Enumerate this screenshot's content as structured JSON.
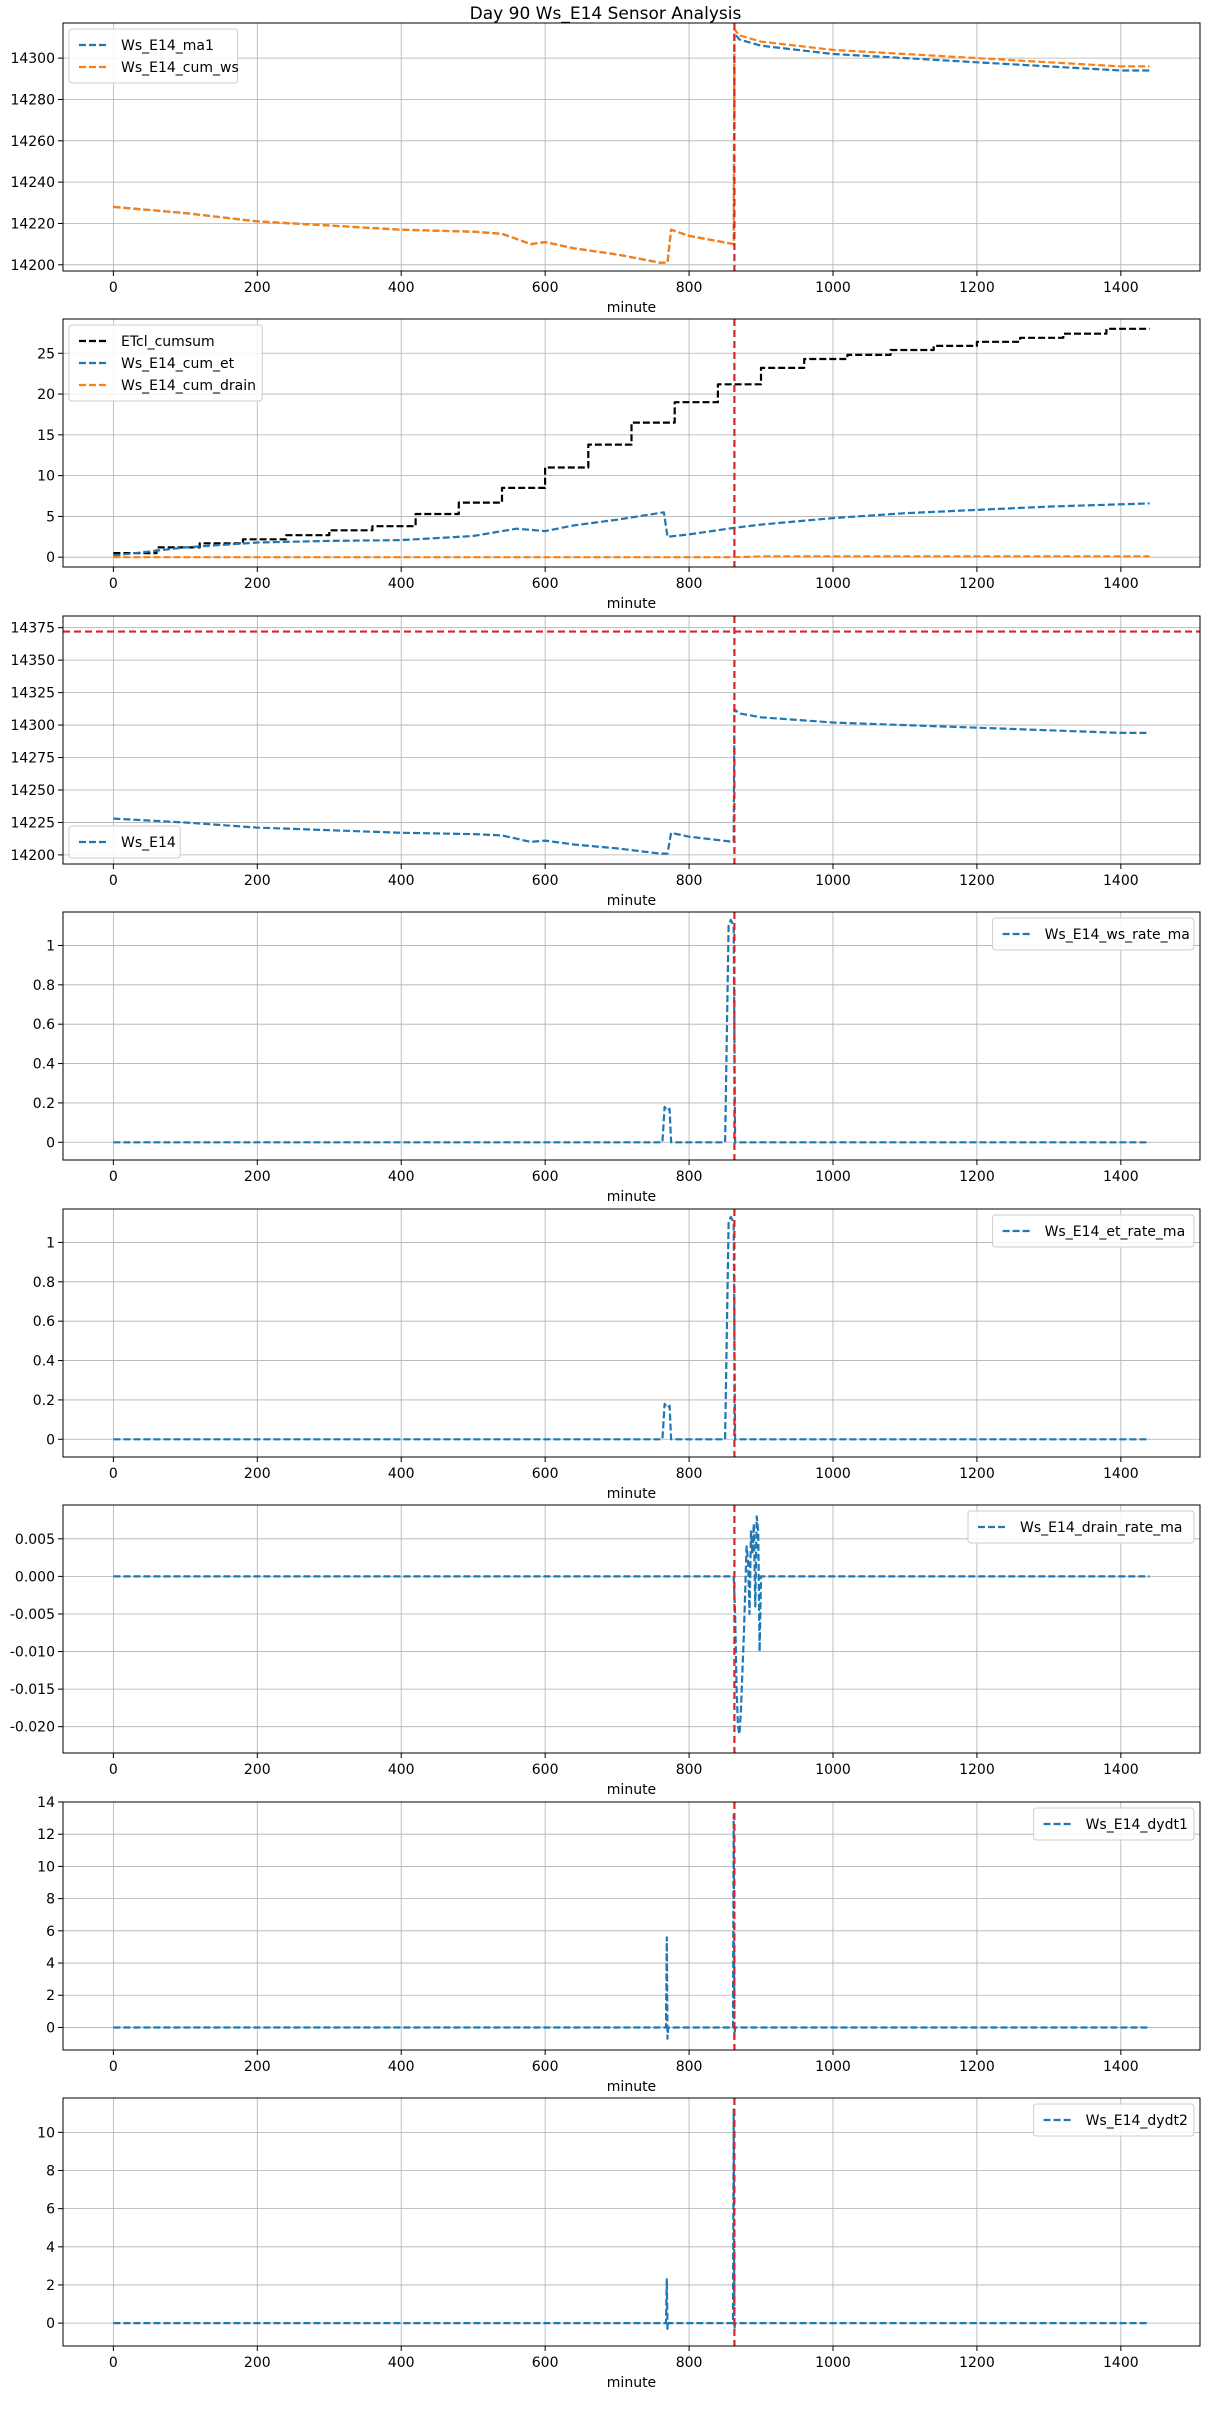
{
  "figure": {
    "title": "Day 90 Ws_E14 Sensor Analysis"
  },
  "colors": {
    "blue": "#1f77b4",
    "orange": "#ff7f0e",
    "black": "#000000",
    "red": "#d62728",
    "grid": "#b0b0b0"
  },
  "chart_data": [
    {
      "type": "line",
      "xlabel": "minute",
      "xlim": [
        -70,
        1510
      ],
      "ylim": [
        14197,
        14317
      ],
      "xticks": [
        0,
        200,
        400,
        600,
        800,
        1000,
        1200,
        1400
      ],
      "yticks": [
        14200,
        14220,
        14240,
        14260,
        14280,
        14300
      ],
      "grid": true,
      "legend_position": "top-left",
      "vlines": [
        863
      ],
      "hlines": [],
      "series": [
        {
          "name": "Ws_E14_ma1",
          "color": "blue",
          "style": "dashed",
          "x": [
            0,
            100,
            200,
            300,
            400,
            500,
            540,
            580,
            600,
            640,
            700,
            760,
            770,
            775,
            800,
            862,
            863,
            870,
            900,
            1000,
            1100,
            1200,
            1300,
            1400,
            1440
          ],
          "y": [
            14228,
            14225,
            14221,
            14219,
            14217,
            14216,
            14215,
            14210,
            14211,
            14208,
            14205,
            14201,
            14201,
            14217,
            14214,
            14210,
            14312,
            14309,
            14306,
            14302,
            14300,
            14298,
            14296,
            14294,
            14294
          ]
        },
        {
          "name": "Ws_E14_cum_ws",
          "color": "orange",
          "style": "dashed",
          "x": [
            0,
            100,
            200,
            300,
            400,
            500,
            540,
            580,
            600,
            640,
            700,
            760,
            770,
            775,
            800,
            862,
            863,
            870,
            900,
            1000,
            1100,
            1200,
            1300,
            1400,
            1440
          ],
          "y": [
            14228,
            14225,
            14221,
            14219,
            14217,
            14216,
            14215,
            14210,
            14211,
            14208,
            14205,
            14201,
            14201,
            14217,
            14214,
            14210,
            14314,
            14311,
            14308,
            14304,
            14302,
            14300,
            14298,
            14296,
            14296
          ]
        }
      ]
    },
    {
      "type": "line",
      "xlabel": "minute",
      "xlim": [
        -70,
        1510
      ],
      "ylim": [
        -1.2,
        29.2
      ],
      "xticks": [
        0,
        200,
        400,
        600,
        800,
        1000,
        1200,
        1400
      ],
      "yticks": [
        0,
        5,
        10,
        15,
        20,
        25
      ],
      "grid": true,
      "legend_position": "top-left",
      "vlines": [
        863
      ],
      "hlines": [],
      "series": [
        {
          "name": "ETcl_cumsum",
          "color": "black",
          "style": "dashed",
          "step": true,
          "x": [
            0,
            60,
            120,
            180,
            240,
            300,
            360,
            420,
            480,
            540,
            600,
            660,
            720,
            780,
            840,
            900,
            960,
            1020,
            1080,
            1140,
            1200,
            1260,
            1320,
            1380,
            1440
          ],
          "y": [
            0.5,
            1.2,
            1.7,
            2.2,
            2.7,
            3.3,
            3.8,
            5.3,
            6.7,
            8.5,
            11.0,
            13.8,
            16.5,
            19.0,
            21.2,
            23.2,
            24.3,
            24.8,
            25.4,
            25.9,
            26.4,
            26.9,
            27.4,
            28.0,
            28.0
          ]
        },
        {
          "name": "Ws_E14_cum_et",
          "color": "blue",
          "style": "dashed",
          "x": [
            0,
            100,
            200,
            300,
            400,
            500,
            560,
            600,
            640,
            700,
            765,
            770,
            800,
            863,
            900,
            1000,
            1100,
            1200,
            1300,
            1440
          ],
          "y": [
            0.2,
            1.2,
            1.8,
            2.0,
            2.1,
            2.6,
            3.5,
            3.2,
            3.9,
            4.6,
            5.5,
            2.5,
            2.8,
            3.6,
            4.0,
            4.8,
            5.4,
            5.8,
            6.2,
            6.6
          ]
        },
        {
          "name": "Ws_E14_cum_drain",
          "color": "orange",
          "style": "dashed",
          "x": [
            0,
            863,
            900,
            1440
          ],
          "y": [
            0.0,
            0.0,
            0.1,
            0.1
          ]
        }
      ]
    },
    {
      "type": "line",
      "xlabel": "minute",
      "xlim": [
        -70,
        1510
      ],
      "ylim": [
        14193,
        14384
      ],
      "xticks": [
        0,
        200,
        400,
        600,
        800,
        1000,
        1200,
        1400
      ],
      "yticks": [
        14200,
        14225,
        14250,
        14275,
        14300,
        14325,
        14350,
        14375
      ],
      "grid": true,
      "legend_position": "bottom-left",
      "vlines": [
        863
      ],
      "hlines": [
        14372
      ],
      "series": [
        {
          "name": "Ws_E14",
          "color": "blue",
          "style": "dashed",
          "x": [
            0,
            100,
            200,
            300,
            400,
            500,
            540,
            580,
            600,
            640,
            700,
            760,
            770,
            775,
            800,
            862,
            863,
            870,
            900,
            1000,
            1100,
            1200,
            1300,
            1400,
            1440
          ],
          "y": [
            14228,
            14225,
            14221,
            14219,
            14217,
            14216,
            14215,
            14210,
            14211,
            14208,
            14205,
            14201,
            14201,
            14217,
            14214,
            14210,
            14312,
            14309,
            14306,
            14302,
            14300,
            14298,
            14296,
            14294,
            14294
          ]
        }
      ]
    },
    {
      "type": "line",
      "xlabel": "minute",
      "xlim": [
        -70,
        1510
      ],
      "ylim": [
        -0.09,
        1.17
      ],
      "xticks": [
        0,
        200,
        400,
        600,
        800,
        1000,
        1200,
        1400
      ],
      "yticks": [
        0.0,
        0.2,
        0.4,
        0.6,
        0.8,
        1.0
      ],
      "grid": true,
      "legend_position": "top-right",
      "vlines": [
        863
      ],
      "hlines": [],
      "series": [
        {
          "name": "Ws_E14_ws_rate_ma",
          "color": "blue",
          "style": "dashed",
          "x": [
            0,
            200,
            400,
            600,
            700,
            763,
            766,
            770,
            773,
            775,
            850,
            855,
            858,
            862,
            864,
            866,
            900,
            1000,
            1200,
            1440
          ],
          "y": [
            0.0,
            0.0,
            0.0,
            0.0,
            0.0,
            0.0,
            0.18,
            0.16,
            0.17,
            0.0,
            0.0,
            1.1,
            1.13,
            1.1,
            0.0,
            0.0,
            0.0,
            0.0,
            0.0,
            0.0
          ]
        }
      ]
    },
    {
      "type": "line",
      "xlabel": "minute",
      "xlim": [
        -70,
        1510
      ],
      "ylim": [
        -0.09,
        1.17
      ],
      "xticks": [
        0,
        200,
        400,
        600,
        800,
        1000,
        1200,
        1400
      ],
      "yticks": [
        0.0,
        0.2,
        0.4,
        0.6,
        0.8,
        1.0
      ],
      "grid": true,
      "legend_position": "top-right",
      "vlines": [
        863
      ],
      "hlines": [],
      "series": [
        {
          "name": "Ws_E14_et_rate_ma",
          "color": "blue",
          "style": "dashed",
          "x": [
            0,
            200,
            400,
            600,
            700,
            763,
            766,
            770,
            773,
            775,
            850,
            855,
            858,
            862,
            864,
            866,
            900,
            1000,
            1200,
            1440
          ],
          "y": [
            0.0,
            0.0,
            0.0,
            0.0,
            0.0,
            0.0,
            0.18,
            0.16,
            0.17,
            0.0,
            0.0,
            1.1,
            1.13,
            1.1,
            0.0,
            0.0,
            0.0,
            0.0,
            0.0,
            0.0
          ]
        }
      ]
    },
    {
      "type": "line",
      "xlabel": "minute",
      "xlim": [
        -70,
        1510
      ],
      "ylim": [
        -0.0235,
        0.0095
      ],
      "xticks": [
        0,
        200,
        400,
        600,
        800,
        1000,
        1200,
        1400
      ],
      "yticks": [
        -0.02,
        -0.015,
        -0.01,
        -0.005,
        0.0,
        0.005
      ],
      "ytick_labels": [
        "-0.020",
        "-0.015",
        "-0.010",
        "-0.005",
        "0.000",
        "0.005"
      ],
      "grid": true,
      "legend_position": "top-right",
      "vlines": [
        863
      ],
      "hlines": [],
      "series": [
        {
          "name": "Ws_E14_drain_rate_ma",
          "color": "blue",
          "style": "dashed",
          "x": [
            0,
            862,
            864,
            866,
            868,
            870,
            872,
            874,
            876,
            878,
            880,
            882,
            884,
            886,
            888,
            890,
            892,
            894,
            896,
            898,
            900,
            1440
          ],
          "y": [
            0.0,
            0.0,
            -0.005,
            -0.015,
            -0.02,
            -0.021,
            -0.018,
            -0.013,
            -0.008,
            -0.002,
            0.004,
            0.002,
            -0.005,
            0.006,
            0.003,
            0.007,
            -0.004,
            0.008,
            0.006,
            -0.01,
            0.0,
            0.0
          ]
        }
      ]
    },
    {
      "type": "line",
      "xlabel": "minute",
      "xlim": [
        -70,
        1510
      ],
      "ylim": [
        -1.4,
        14.0
      ],
      "xticks": [
        0,
        200,
        400,
        600,
        800,
        1000,
        1200,
        1400
      ],
      "yticks": [
        0,
        2,
        4,
        6,
        8,
        10,
        12,
        14
      ],
      "grid": true,
      "legend_position": "top-right",
      "vlines": [
        863
      ],
      "hlines": [],
      "series": [
        {
          "name": "Ws_E14_dydt1",
          "color": "blue",
          "style": "dashed",
          "x": [
            0,
            100,
            200,
            300,
            400,
            500,
            600,
            700,
            768,
            769,
            770,
            771,
            772,
            800,
            861,
            862,
            863,
            864,
            865,
            900,
            1000,
            1200,
            1440
          ],
          "y": [
            0.0,
            0.0,
            0.0,
            0.0,
            0.0,
            0.0,
            0.0,
            0.0,
            0.0,
            5.6,
            -0.7,
            0.0,
            0.0,
            0.0,
            0.0,
            13.2,
            -0.6,
            0.0,
            0.0,
            0.0,
            0.0,
            0.0,
            0.0
          ]
        }
      ]
    },
    {
      "type": "line",
      "xlabel": "minute",
      "xlim": [
        -70,
        1510
      ],
      "ylim": [
        -1.2,
        11.8
      ],
      "xticks": [
        0,
        200,
        400,
        600,
        800,
        1000,
        1200,
        1400
      ],
      "yticks": [
        0,
        2,
        4,
        6,
        8,
        10
      ],
      "grid": true,
      "legend_position": "top-right",
      "vlines": [
        863
      ],
      "hlines": [],
      "series": [
        {
          "name": "Ws_E14_dydt2",
          "color": "blue",
          "style": "dashed",
          "x": [
            0,
            100,
            200,
            300,
            400,
            500,
            600,
            700,
            768,
            769,
            770,
            771,
            772,
            800,
            861,
            862,
            863,
            864,
            865,
            900,
            1000,
            1200,
            1440
          ],
          "y": [
            0.0,
            0.0,
            0.0,
            0.0,
            0.0,
            0.0,
            0.0,
            0.0,
            0.0,
            2.3,
            -0.3,
            0.0,
            0.0,
            0.0,
            0.0,
            11.2,
            -0.3,
            0.0,
            0.0,
            0.0,
            0.0,
            0.0,
            0.0
          ]
        }
      ]
    }
  ]
}
